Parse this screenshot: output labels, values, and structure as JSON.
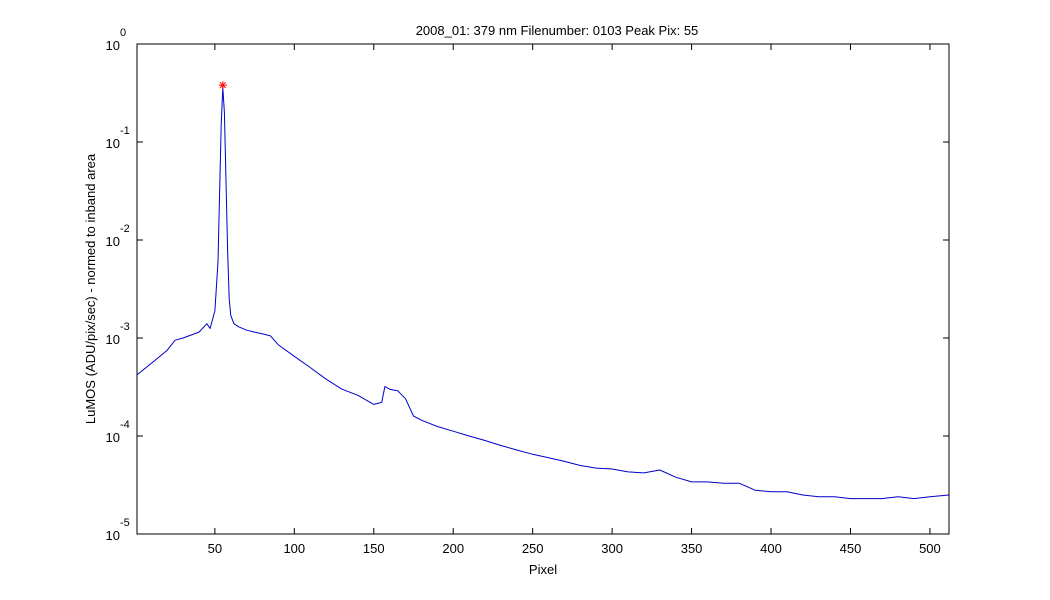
{
  "chart_data": {
    "type": "line",
    "title": "2008_01: 379 nm  Filenumber: 0103 Peak Pix: 55",
    "xlabel": "Pixel",
    "ylabel": "LuMOS (ADU/pix/sec) - normed to inband area",
    "xlim": [
      1,
      512
    ],
    "ylim": [
      1e-05,
      1
    ],
    "yscale": "log",
    "xticks": [
      50,
      100,
      150,
      200,
      250,
      300,
      350,
      400,
      450,
      500
    ],
    "yticks": [
      {
        "value": 1,
        "base": "10",
        "exponent": "0"
      },
      {
        "value": 0.1,
        "base": "10",
        "exponent": "-1"
      },
      {
        "value": 0.01,
        "base": "10",
        "exponent": "-2"
      },
      {
        "value": 0.001,
        "base": "10",
        "exponent": "-3"
      },
      {
        "value": 0.0001,
        "base": "10",
        "exponent": "-4"
      },
      {
        "value": 1e-05,
        "base": "10",
        "exponent": "-5"
      }
    ],
    "grid": false,
    "series": [
      {
        "color": "#0000cc",
        "x": [
          1,
          10,
          20,
          25,
          30,
          40,
          45,
          47,
          50,
          52,
          53,
          54,
          55,
          56,
          57,
          58,
          59,
          60,
          62,
          65,
          70,
          75,
          80,
          85,
          90,
          100,
          110,
          120,
          130,
          140,
          150,
          155,
          157,
          160,
          165,
          170,
          175,
          180,
          190,
          200,
          210,
          220,
          230,
          240,
          250,
          260,
          270,
          280,
          290,
          300,
          310,
          320,
          330,
          340,
          350,
          360,
          370,
          380,
          390,
          400,
          410,
          420,
          430,
          440,
          450,
          460,
          470,
          480,
          490,
          500,
          512
        ],
        "y": [
          0.00042,
          0.00055,
          0.00075,
          0.00095,
          0.001,
          0.00115,
          0.0014,
          0.00125,
          0.0019,
          0.006,
          0.03,
          0.15,
          0.36,
          0.2,
          0.04,
          0.008,
          0.0025,
          0.0017,
          0.0014,
          0.0013,
          0.0012,
          0.00115,
          0.0011,
          0.00105,
          0.00085,
          0.00065,
          0.0005,
          0.00038,
          0.0003,
          0.00026,
          0.00021,
          0.00022,
          0.00032,
          0.0003,
          0.00029,
          0.00024,
          0.00016,
          0.000145,
          0.000125,
          0.000112,
          0.0001,
          9e-05,
          8e-05,
          7.2e-05,
          6.5e-05,
          6e-05,
          5.5e-05,
          5e-05,
          4.7e-05,
          4.6e-05,
          4.3e-05,
          4.2e-05,
          4.5e-05,
          3.8e-05,
          3.4e-05,
          3.4e-05,
          3.3e-05,
          3.3e-05,
          2.8e-05,
          2.7e-05,
          2.7e-05,
          2.5e-05,
          2.4e-05,
          2.4e-05,
          2.3e-05,
          2.3e-05,
          2.3e-05,
          2.4e-05,
          2.3e-05,
          2.4e-05,
          2.5e-05
        ]
      }
    ],
    "peak_marker": {
      "x": 55,
      "y": 0.38,
      "color": "#ff0000",
      "symbol": "*"
    }
  }
}
